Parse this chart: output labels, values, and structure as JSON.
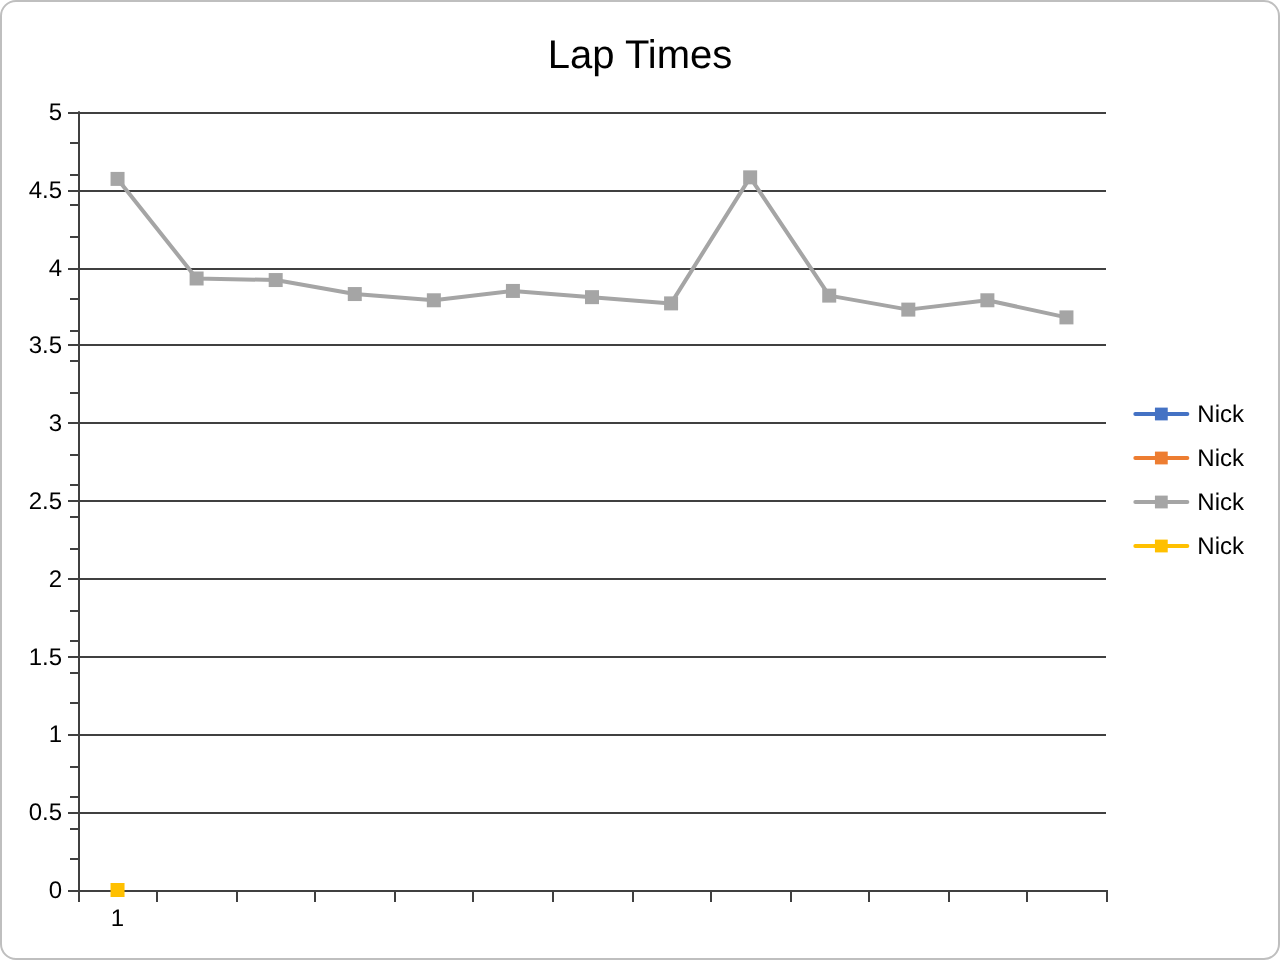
{
  "chart_data": {
    "type": "line",
    "title": "Lap Times",
    "categories": [
      "1",
      null,
      null,
      null,
      null,
      null,
      null,
      null,
      null,
      null,
      null,
      null,
      null
    ],
    "series": [
      {
        "name": "Nick",
        "color": "#4472c4",
        "values": [
          null,
          null,
          null,
          null,
          null,
          null,
          null,
          null,
          null,
          null,
          null,
          null,
          null
        ]
      },
      {
        "name": "Nick",
        "color": "#ed7d31",
        "values": [
          null,
          null,
          null,
          null,
          null,
          null,
          null,
          null,
          null,
          null,
          null,
          null,
          null
        ]
      },
      {
        "name": "Nick",
        "color": "#a5a5a5",
        "values": [
          4.57,
          3.93,
          3.92,
          3.83,
          3.79,
          3.85,
          3.81,
          3.77,
          4.58,
          3.82,
          3.73,
          3.79,
          3.68
        ]
      },
      {
        "name": "Nick",
        "color": "#ffc000",
        "values": [
          0,
          null,
          null,
          null,
          null,
          null,
          null,
          null,
          null,
          null,
          null,
          null,
          null
        ]
      }
    ],
    "ylim": [
      0,
      5
    ],
    "yticks": [
      0,
      0.5,
      1,
      1.5,
      2,
      2.5,
      3,
      3.5,
      4,
      4.5,
      5
    ],
    "grid": "y",
    "legend": "right",
    "marker": "square",
    "line_style": "solid"
  }
}
